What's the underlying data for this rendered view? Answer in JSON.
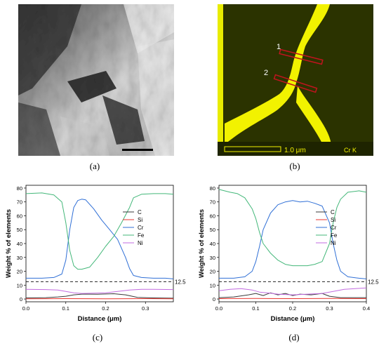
{
  "panels": {
    "a": {
      "label": "(a)"
    },
    "b": {
      "label": "(b)",
      "scale_bar_text": "1.0 μm",
      "element_label": "Cr K",
      "line_markers": [
        "1",
        "2"
      ]
    },
    "c": {
      "label": "(c)"
    },
    "d": {
      "label": "(d)"
    }
  },
  "colors": {
    "C": "#3a3a3a",
    "Si": "#e8352f",
    "Cr": "#2f6fd6",
    "Fe": "#43b779",
    "Ni": "#c26be0",
    "map_yellow": "#f2f200",
    "map_dark": "#283000",
    "marker_red": "#c0141e"
  },
  "chart_data": [
    {
      "type": "line",
      "panel": "c",
      "xlabel": "Distance (μm)",
      "ylabel": "Weight % of elements",
      "xlim": [
        0.0,
        0.37
      ],
      "ylim": [
        -2,
        82
      ],
      "x_ticks": [
        "0.0",
        "0.1",
        "0.2",
        "0.3"
      ],
      "y_ticks": [
        "0",
        "10",
        "20",
        "30",
        "40",
        "50",
        "60",
        "70",
        "80"
      ],
      "legend_position": "center-right",
      "reference_line": {
        "y": 12.5,
        "label": "12.5",
        "style": "dashed"
      },
      "series": [
        {
          "name": "C",
          "x": [
            0,
            0.05,
            0.08,
            0.1,
            0.12,
            0.14,
            0.16,
            0.18,
            0.2,
            0.22,
            0.25,
            0.28,
            0.32,
            0.37
          ],
          "y": [
            0.8,
            1.0,
            1.5,
            2.0,
            3.0,
            3.5,
            3.5,
            3.4,
            3.6,
            3.8,
            3.0,
            1.2,
            0.8,
            0.6
          ]
        },
        {
          "name": "Si",
          "x": [
            0,
            0.1,
            0.2,
            0.3,
            0.37
          ],
          "y": [
            0.2,
            0.3,
            0.2,
            0.3,
            0.2
          ]
        },
        {
          "name": "Cr",
          "x": [
            0,
            0.04,
            0.07,
            0.09,
            0.1,
            0.11,
            0.12,
            0.13,
            0.14,
            0.15,
            0.17,
            0.19,
            0.21,
            0.23,
            0.25,
            0.26,
            0.27,
            0.29,
            0.32,
            0.35,
            0.37
          ],
          "y": [
            15,
            15,
            15.5,
            18,
            28,
            50,
            66,
            71,
            72,
            71.5,
            65,
            57,
            50,
            43,
            30,
            22,
            17,
            15.5,
            15,
            15,
            14.5
          ]
        },
        {
          "name": "Fe",
          "x": [
            0,
            0.04,
            0.07,
            0.09,
            0.1,
            0.11,
            0.12,
            0.13,
            0.14,
            0.16,
            0.18,
            0.2,
            0.22,
            0.24,
            0.26,
            0.27,
            0.29,
            0.32,
            0.35,
            0.37
          ],
          "y": [
            76,
            76.5,
            75,
            70,
            55,
            35,
            24,
            21.5,
            21.5,
            23,
            30,
            38,
            45,
            55,
            66,
            73,
            75.5,
            76,
            76,
            75.5
          ]
        },
        {
          "name": "Ni",
          "x": [
            0,
            0.05,
            0.08,
            0.1,
            0.12,
            0.14,
            0.17,
            0.2,
            0.23,
            0.26,
            0.29,
            0.32,
            0.37
          ],
          "y": [
            7,
            6.8,
            6.5,
            5.5,
            4.5,
            4.0,
            4.2,
            4.5,
            5.5,
            6.5,
            7.0,
            7.0,
            6.8
          ]
        }
      ]
    },
    {
      "type": "line",
      "panel": "d",
      "xlabel": "Distance (μm)",
      "ylabel": "Weight % of elements",
      "xlim": [
        0.0,
        0.4
      ],
      "ylim": [
        -2,
        82
      ],
      "x_ticks": [
        "0.0",
        "0.1",
        "0.2",
        "0.3",
        "0.4"
      ],
      "y_ticks": [
        "0",
        "10",
        "20",
        "30",
        "40",
        "50",
        "60",
        "70",
        "80"
      ],
      "legend_position": "center-right",
      "reference_line": {
        "y": 12.5,
        "label": "12.5",
        "style": "dashed"
      },
      "series": [
        {
          "name": "C",
          "x": [
            0,
            0.04,
            0.08,
            0.1,
            0.12,
            0.14,
            0.16,
            0.18,
            0.2,
            0.22,
            0.25,
            0.28,
            0.3,
            0.33,
            0.37,
            0.4
          ],
          "y": [
            1.0,
            1.5,
            3.0,
            4.0,
            2.5,
            4.5,
            3.0,
            4.0,
            2.5,
            3.5,
            3.0,
            4.0,
            2.0,
            1.0,
            1.0,
            1.0
          ]
        },
        {
          "name": "Si",
          "x": [
            0,
            0.1,
            0.2,
            0.3,
            0.4
          ],
          "y": [
            0.3,
            0.4,
            0.3,
            0.4,
            0.3
          ]
        },
        {
          "name": "Cr",
          "x": [
            0,
            0.04,
            0.07,
            0.09,
            0.1,
            0.11,
            0.12,
            0.14,
            0.16,
            0.18,
            0.2,
            0.22,
            0.24,
            0.26,
            0.28,
            0.3,
            0.31,
            0.32,
            0.33,
            0.35,
            0.38,
            0.4
          ],
          "y": [
            15,
            15,
            16,
            20,
            27,
            38,
            50,
            62,
            68,
            70,
            71,
            70,
            70.5,
            69,
            67,
            55,
            40,
            28,
            20,
            16,
            15,
            14.5
          ]
        },
        {
          "name": "Fe",
          "x": [
            0,
            0.03,
            0.05,
            0.07,
            0.09,
            0.1,
            0.11,
            0.12,
            0.14,
            0.16,
            0.18,
            0.2,
            0.22,
            0.24,
            0.26,
            0.28,
            0.3,
            0.31,
            0.32,
            0.33,
            0.35,
            0.38,
            0.4
          ],
          "y": [
            79,
            77,
            76,
            73,
            65,
            58,
            48,
            40,
            33,
            28,
            25,
            24,
            24,
            24,
            25,
            27,
            40,
            55,
            66,
            72,
            77,
            78,
            77
          ]
        },
        {
          "name": "Ni",
          "x": [
            0,
            0.03,
            0.06,
            0.09,
            0.11,
            0.13,
            0.16,
            0.2,
            0.24,
            0.28,
            0.31,
            0.34,
            0.37,
            0.4
          ],
          "y": [
            6,
            7,
            7.5,
            6.5,
            5,
            4.5,
            3.5,
            3.0,
            3.5,
            4.0,
            5.5,
            7.0,
            7.5,
            8.0
          ]
        }
      ]
    }
  ]
}
